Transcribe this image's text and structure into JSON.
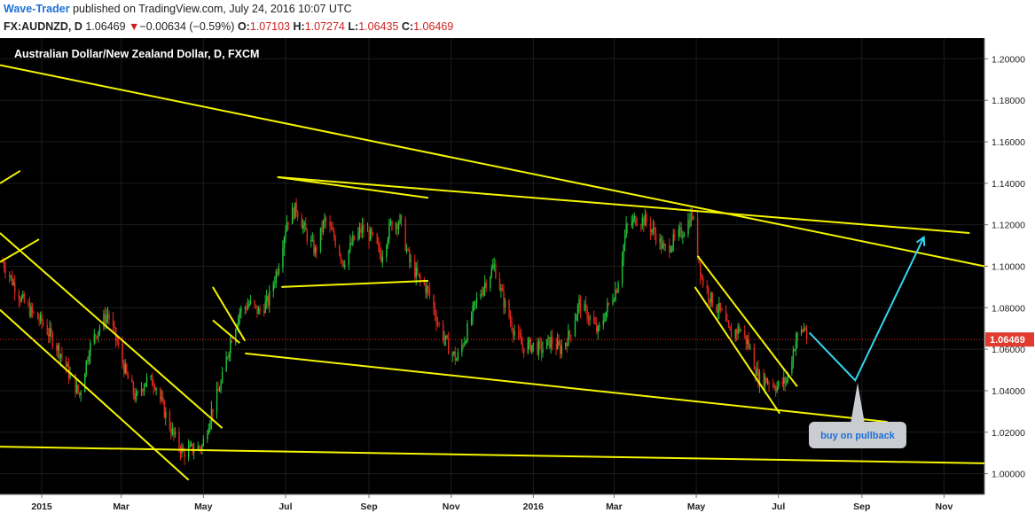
{
  "header": {
    "author": "Wave-Trader",
    "published_text": "published on TradingView.com, July 24, 2016 10:07 UTC"
  },
  "quote": {
    "symbol": "FX:AUDNZD, D",
    "last": "1.06469",
    "arrow": "▼",
    "change": "−0.00634 (−0.59%)",
    "open_label": "O:",
    "open": "1.07103",
    "high_label": "H:",
    "high": "1.07274",
    "low_label": "L:",
    "low": "1.06435",
    "close_label": "C:",
    "close": "1.06469"
  },
  "chart_data": {
    "type": "candlestick",
    "title": "Australian Dollar/New Zealand Dollar, D, FXCM",
    "x_ticks": [
      "2015",
      "Mar",
      "May",
      "Jul",
      "Sep",
      "Nov",
      "2016",
      "Mar",
      "May",
      "Jul",
      "Sep",
      "Nov"
    ],
    "y_ticks": [
      "1.00000",
      "1.02000",
      "1.04000",
      "1.06000",
      "1.08000",
      "1.10000",
      "1.12000",
      "1.14000",
      "1.16000",
      "1.18000",
      "1.20000"
    ],
    "ylim": [
      0.99,
      1.21
    ],
    "last_price": 1.06469,
    "last_price_label": "1.06469",
    "annotation": "buy on pullback",
    "price_path": [
      [
        "2014-12-03",
        1.102
      ],
      [
        "2014-12-10",
        1.093
      ],
      [
        "2014-12-17",
        1.084
      ],
      [
        "2014-12-24",
        1.078
      ],
      [
        "2015-01-01",
        1.073
      ],
      [
        "2015-01-08",
        1.066
      ],
      [
        "2015-01-15",
        1.058
      ],
      [
        "2015-01-22",
        1.047
      ],
      [
        "2015-01-29",
        1.038
      ],
      [
        "2015-02-05",
        1.06
      ],
      [
        "2015-02-12",
        1.07
      ],
      [
        "2015-02-19",
        1.077
      ],
      [
        "2015-02-26",
        1.063
      ],
      [
        "2015-03-05",
        1.047
      ],
      [
        "2015-03-12",
        1.036
      ],
      [
        "2015-03-19",
        1.045
      ],
      [
        "2015-03-26",
        1.044
      ],
      [
        "2015-04-02",
        1.03
      ],
      [
        "2015-04-09",
        1.018
      ],
      [
        "2015-04-16",
        1.01
      ],
      [
        "2015-04-23",
        1.012
      ],
      [
        "2015-04-30",
        1.013
      ],
      [
        "2015-05-07",
        1.03
      ],
      [
        "2015-05-14",
        1.043
      ],
      [
        "2015-05-21",
        1.064
      ],
      [
        "2015-05-28",
        1.078
      ],
      [
        "2015-06-04",
        1.082
      ],
      [
        "2015-06-11",
        1.078
      ],
      [
        "2015-06-18",
        1.083
      ],
      [
        "2015-06-25",
        1.099
      ],
      [
        "2015-07-02",
        1.122
      ],
      [
        "2015-07-09",
        1.128
      ],
      [
        "2015-07-16",
        1.116
      ],
      [
        "2015-07-23",
        1.107
      ],
      [
        "2015-07-30",
        1.122
      ],
      [
        "2015-08-06",
        1.114
      ],
      [
        "2015-08-13",
        1.102
      ],
      [
        "2015-08-20",
        1.112
      ],
      [
        "2015-08-27",
        1.118
      ],
      [
        "2015-09-03",
        1.114
      ],
      [
        "2015-09-10",
        1.105
      ],
      [
        "2015-09-17",
        1.12
      ],
      [
        "2015-09-24",
        1.122
      ],
      [
        "2015-10-01",
        1.102
      ],
      [
        "2015-10-08",
        1.094
      ],
      [
        "2015-10-15",
        1.088
      ],
      [
        "2015-10-22",
        1.073
      ],
      [
        "2015-10-29",
        1.062
      ],
      [
        "2015-11-05",
        1.055
      ],
      [
        "2015-11-12",
        1.067
      ],
      [
        "2015-11-19",
        1.082
      ],
      [
        "2015-11-26",
        1.092
      ],
      [
        "2015-12-03",
        1.1
      ],
      [
        "2015-12-10",
        1.083
      ],
      [
        "2015-12-17",
        1.07
      ],
      [
        "2015-12-24",
        1.061
      ],
      [
        "2015-12-31",
        1.062
      ],
      [
        "2016-01-07",
        1.06
      ],
      [
        "2016-01-14",
        1.064
      ],
      [
        "2016-01-21",
        1.06
      ],
      [
        "2016-01-28",
        1.067
      ],
      [
        "2016-02-04",
        1.082
      ],
      [
        "2016-02-11",
        1.076
      ],
      [
        "2016-02-18",
        1.068
      ],
      [
        "2016-02-25",
        1.08
      ],
      [
        "2016-03-03",
        1.09
      ],
      [
        "2016-03-10",
        1.118
      ],
      [
        "2016-03-17",
        1.123
      ],
      [
        "2016-03-24",
        1.122
      ],
      [
        "2016-03-31",
        1.116
      ],
      [
        "2016-04-07",
        1.108
      ],
      [
        "2016-04-14",
        1.112
      ],
      [
        "2016-04-21",
        1.117
      ],
      [
        "2016-04-28",
        1.125
      ],
      [
        "2016-05-05",
        1.094
      ],
      [
        "2016-05-12",
        1.084
      ],
      [
        "2016-05-19",
        1.078
      ],
      [
        "2016-05-26",
        1.067
      ],
      [
        "2016-06-02",
        1.07
      ],
      [
        "2016-06-09",
        1.062
      ],
      [
        "2016-06-16",
        1.046
      ],
      [
        "2016-06-23",
        1.045
      ],
      [
        "2016-06-30",
        1.042
      ],
      [
        "2016-07-07",
        1.045
      ],
      [
        "2016-07-14",
        1.065
      ],
      [
        "2016-07-21",
        1.071
      ],
      [
        "2016-07-22",
        1.06469
      ]
    ],
    "trendlines": [
      [
        [
          "2014-12-01",
          1.197
        ],
        [
          "2016-12-01",
          1.1
        ]
      ],
      [
        [
          "2015-06-25",
          1.143
        ],
        [
          "2016-11-20",
          1.116
        ]
      ],
      [
        [
          "2015-06-25",
          1.143
        ],
        [
          "2015-10-15",
          1.133
        ]
      ],
      [
        [
          "2015-06-28",
          1.09
        ],
        [
          "2015-10-15",
          1.093
        ]
      ],
      [
        [
          "2015-06-01",
          1.058
        ],
        [
          "2016-09-20",
          1.025
        ]
      ],
      [
        [
          "2014-12-01",
          1.013
        ],
        [
          "2016-12-01",
          1.005
        ]
      ],
      [
        [
          "2014-12-01",
          1.079
        ],
        [
          "2015-04-20",
          0.997
        ]
      ],
      [
        [
          "2014-12-01",
          1.116
        ],
        [
          "2015-05-15",
          1.022
        ]
      ],
      [
        [
          "2014-12-01",
          1.102
        ],
        [
          "2014-12-30",
          1.113
        ]
      ],
      [
        [
          "2014-12-01",
          1.14
        ],
        [
          "2014-12-16",
          1.146
        ]
      ],
      [
        [
          "2015-05-08",
          1.09
        ],
        [
          "2015-06-01",
          1.064
        ]
      ],
      [
        [
          "2015-05-08",
          1.074
        ],
        [
          "2015-05-28",
          1.063
        ]
      ],
      [
        [
          "2016-04-30",
          1.09
        ],
        [
          "2016-07-02",
          1.029
        ]
      ],
      [
        [
          "2016-05-02",
          1.105
        ],
        [
          "2016-07-15",
          1.042
        ]
      ]
    ],
    "projection": [
      [
        "2016-07-24",
        1.068
      ],
      [
        "2016-08-27",
        1.045
      ],
      [
        "2016-10-17",
        1.114
      ]
    ]
  }
}
